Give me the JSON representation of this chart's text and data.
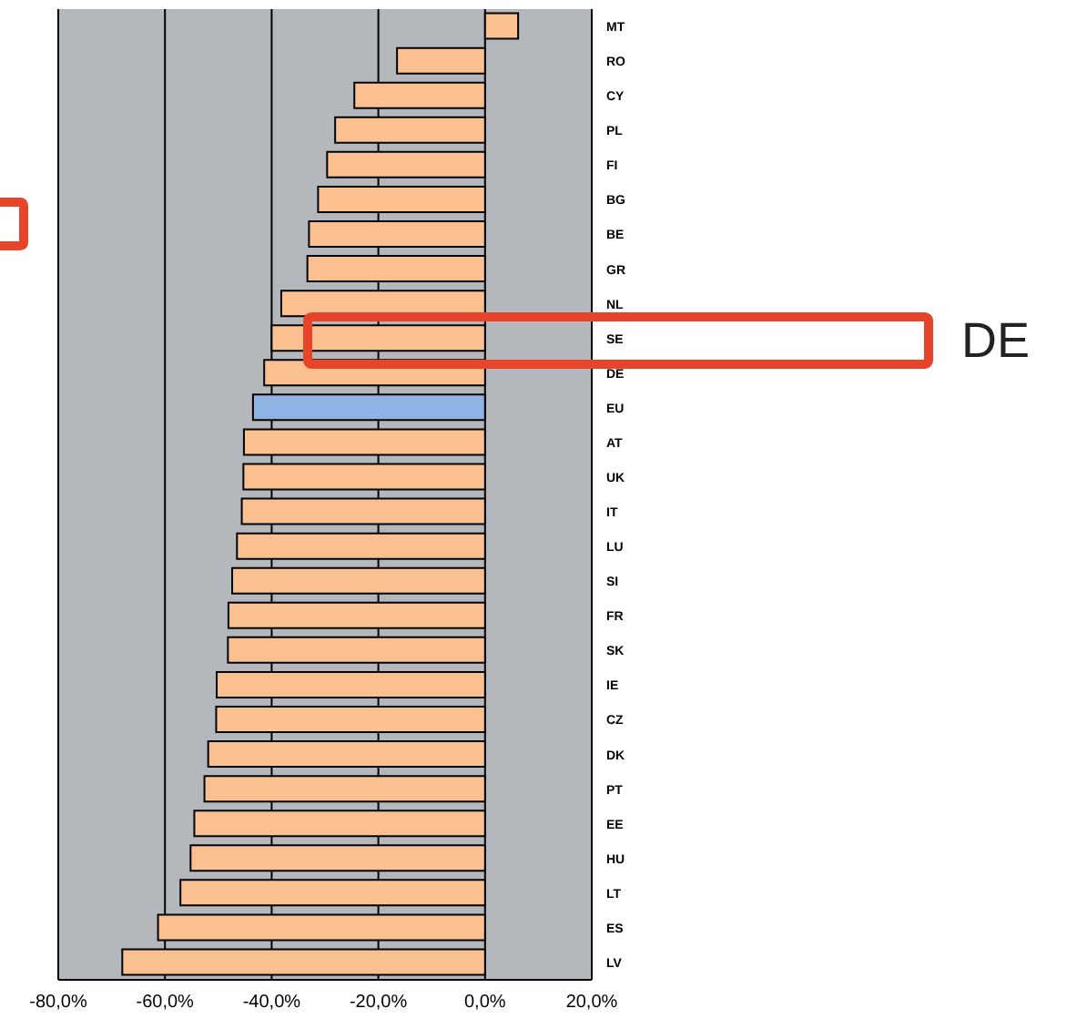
{
  "chart_data": {
    "type": "bar",
    "orientation": "horizontal",
    "categories": [
      "MT",
      "RO",
      "CY",
      "PL",
      "FI",
      "BG",
      "BE",
      "GR",
      "NL",
      "SE",
      "DE",
      "EU",
      "AT",
      "UK",
      "IT",
      "LU",
      "SI",
      "FR",
      "SK",
      "IE",
      "CZ",
      "DK",
      "PT",
      "EE",
      "HU",
      "LT",
      "ES",
      "LV"
    ],
    "values": [
      6.2,
      -16.5,
      -24.5,
      -28.1,
      -29.6,
      -31.3,
      -33.0,
      -33.3,
      -38.2,
      -40.0,
      -41.4,
      -43.5,
      -45.2,
      -45.3,
      -45.6,
      -46.5,
      -47.4,
      -48.1,
      -48.2,
      -50.3,
      -50.4,
      -51.9,
      -52.6,
      -54.5,
      -55.2,
      -57.1,
      -61.3,
      -68.0
    ],
    "colors": [
      "#fac090",
      "#fac090",
      "#fac090",
      "#fac090",
      "#fac090",
      "#fac090",
      "#fac090",
      "#fac090",
      "#fac090",
      "#fac090",
      "#fac090",
      "#8eb4e3",
      "#fac090",
      "#fac090",
      "#fac090",
      "#fac090",
      "#fac090",
      "#fac090",
      "#fac090",
      "#fac090",
      "#fac090",
      "#fac090",
      "#fac090",
      "#fac090",
      "#fac090",
      "#fac090",
      "#fac090",
      "#fac090"
    ],
    "xlim": [
      -80,
      20
    ],
    "xticks": [
      {
        "value": -80,
        "label": "-80,0%"
      },
      {
        "value": -60,
        "label": "-60,0%"
      },
      {
        "value": -40,
        "label": "-40,0%"
      },
      {
        "value": -20,
        "label": "-20,0%"
      },
      {
        "value": 0,
        "label": "0,0%"
      },
      {
        "value": 20,
        "label": "20,0%"
      }
    ],
    "grid": "x",
    "annotations": [
      "DE"
    ]
  }
}
